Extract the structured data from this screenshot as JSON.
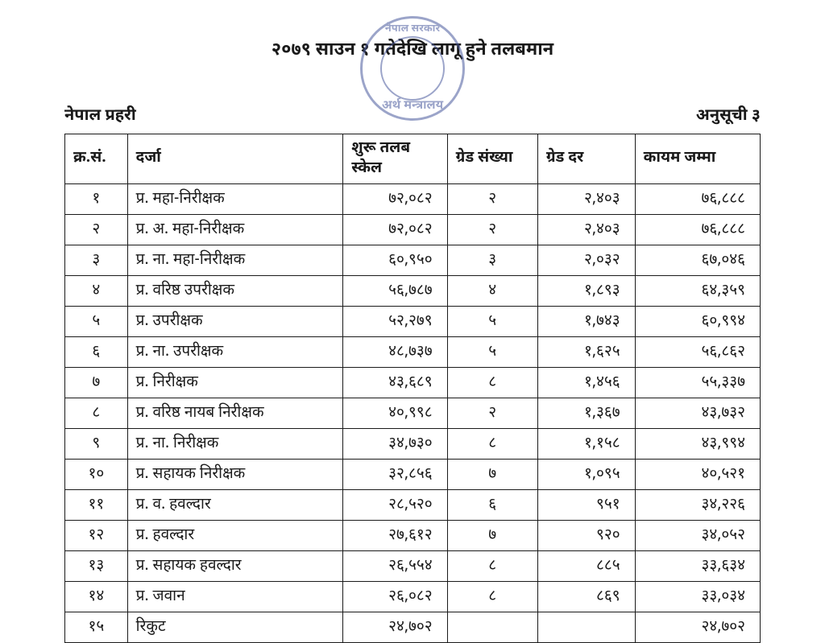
{
  "stamp": {
    "outer_color": "#4a5a9e",
    "top_text": "नेपाल सरकार",
    "bottom_text": "अर्थ मन्त्रालय"
  },
  "title": "२०७९ साउन १ गतेदेखि लागू हुने तलबमान",
  "org_label": "नेपाल प्रहरी",
  "annex_label": "अनुसूची ३",
  "table": {
    "columns": [
      "क्र.सं.",
      "दर्जा",
      "शुरू तलब स्केल",
      "ग्रेड संख्या",
      "ग्रेड दर",
      "कायम जम्मा"
    ],
    "col_align": [
      "center",
      "left",
      "right",
      "center",
      "right",
      "right"
    ],
    "border_color": "#1a1a1a",
    "header_fontsize": 19,
    "cell_fontsize": 19,
    "rows": [
      {
        "sn": "१",
        "post": "प्र. महा-निरीक्षक",
        "start": "७२,०८२",
        "gnum": "२",
        "grate": "२,४०३",
        "total": "७६,८८८"
      },
      {
        "sn": "२",
        "post": "प्र. अ. महा-निरीक्षक",
        "start": "७२,०८२",
        "gnum": "२",
        "grate": "२,४०३",
        "total": "७६,८८८"
      },
      {
        "sn": "३",
        "post": "प्र. ना. महा-निरीक्षक",
        "start": "६०,९५०",
        "gnum": "३",
        "grate": "२,०३२",
        "total": "६७,०४६"
      },
      {
        "sn": "४",
        "post": "प्र. वरिष्ठ उपरीक्षक",
        "start": "५६,७८७",
        "gnum": "४",
        "grate": "१,८९३",
        "total": "६४,३५९"
      },
      {
        "sn": "५",
        "post": "प्र. उपरीक्षक",
        "start": "५२,२७९",
        "gnum": "५",
        "grate": "१,७४३",
        "total": "६०,९९४"
      },
      {
        "sn": "६",
        "post": "प्र. ना. उपरीक्षक",
        "start": "४८,७३७",
        "gnum": "५",
        "grate": "१,६२५",
        "total": "५६,८६२"
      },
      {
        "sn": "७",
        "post": "प्र. निरीक्षक",
        "start": "४३,६८९",
        "gnum": "८",
        "grate": "१,४५६",
        "total": "५५,३३७"
      },
      {
        "sn": "८",
        "post": "प्र. वरिष्ठ नायब निरीक्षक",
        "start": "४०,९९८",
        "gnum": "२",
        "grate": "१,३६७",
        "total": "४३,७३२"
      },
      {
        "sn": "९",
        "post": "प्र. ना. निरीक्षक",
        "start": "३४,७३०",
        "gnum": "८",
        "grate": "१,१५८",
        "total": "४३,९९४"
      },
      {
        "sn": "१०",
        "post": "प्र. सहायक निरीक्षक",
        "start": "३२,८५६",
        "gnum": "७",
        "grate": "१,०९५",
        "total": "४०,५२१"
      },
      {
        "sn": "११",
        "post": "प्र. व. हवल्दार",
        "start": "२८,५२०",
        "gnum": "६",
        "grate": "९५१",
        "total": "३४,२२६"
      },
      {
        "sn": "१२",
        "post": "प्र. हवल्दार",
        "start": "२७,६१२",
        "gnum": "७",
        "grate": "९२०",
        "total": "३४,०५२"
      },
      {
        "sn": "१३",
        "post": "प्र. सहायक हवल्दार",
        "start": "२६,५५४",
        "gnum": "८",
        "grate": "८८५",
        "total": "३३,६३४"
      },
      {
        "sn": "१४",
        "post": "प्र. जवान",
        "start": "२६,०८२",
        "gnum": "८",
        "grate": "८६९",
        "total": "३३,०३४"
      },
      {
        "sn": "१५",
        "post": "रिकुट",
        "start": "२४,७०२",
        "gnum": "",
        "grate": "",
        "total": "२४,७०२"
      }
    ]
  }
}
